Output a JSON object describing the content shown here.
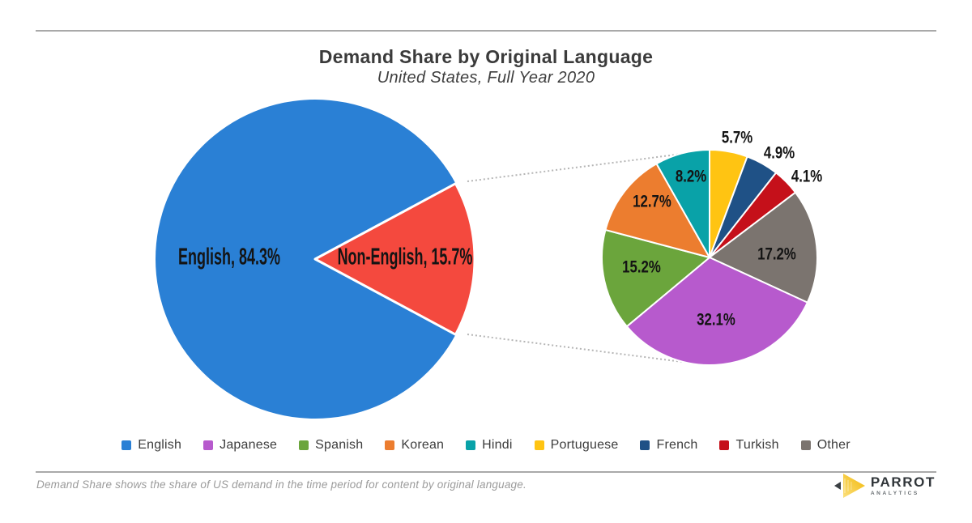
{
  "chart_data": {
    "type": "pie",
    "title": "Demand Share by Original Language",
    "subtitle": "United States, Full Year 2020",
    "unit": "%",
    "legend_position": "bottom",
    "main_pie": {
      "slices": [
        {
          "label": "English",
          "value": 84.3,
          "color": "#2A80D5"
        },
        {
          "label": "Non-English",
          "value": 15.7,
          "color": "#F4493E"
        }
      ]
    },
    "breakdown_pie": {
      "description": "Non-English share broken down by language, drawn clockwise from 12 o'clock",
      "slices": [
        {
          "label": "Portuguese",
          "value": 5.7,
          "color": "#FFC412"
        },
        {
          "label": "French",
          "value": 4.9,
          "color": "#1F5186"
        },
        {
          "label": "Turkish",
          "value": 4.1,
          "color": "#C5101A"
        },
        {
          "label": "Other",
          "value": 17.2,
          "color": "#7B746F"
        },
        {
          "label": "Japanese",
          "value": 32.1,
          "color": "#B75ACD"
        },
        {
          "label": "Spanish",
          "value": 15.2,
          "color": "#6BA53C"
        },
        {
          "label": "Korean",
          "value": 12.7,
          "color": "#EC7D2F"
        },
        {
          "label": "Hindi",
          "value": 8.2,
          "color": "#09A2A8"
        }
      ]
    },
    "legend": [
      {
        "label": "English",
        "color": "#2A80D5"
      },
      {
        "label": "Japanese",
        "color": "#B75ACD"
      },
      {
        "label": "Spanish",
        "color": "#6BA53C"
      },
      {
        "label": "Korean",
        "color": "#EC7D2F"
      },
      {
        "label": "Hindi",
        "color": "#09A2A8"
      },
      {
        "label": "Portuguese",
        "color": "#FFC412"
      },
      {
        "label": "French",
        "color": "#1F5186"
      },
      {
        "label": "Turkish",
        "color": "#C5101A"
      },
      {
        "label": "Other",
        "color": "#7B746F"
      }
    ]
  },
  "footer": {
    "note": "Demand Share shows the share of US demand in the time period for content by original language.",
    "logo": {
      "brand": "PARROT",
      "sub": "ANALYTICS"
    }
  }
}
